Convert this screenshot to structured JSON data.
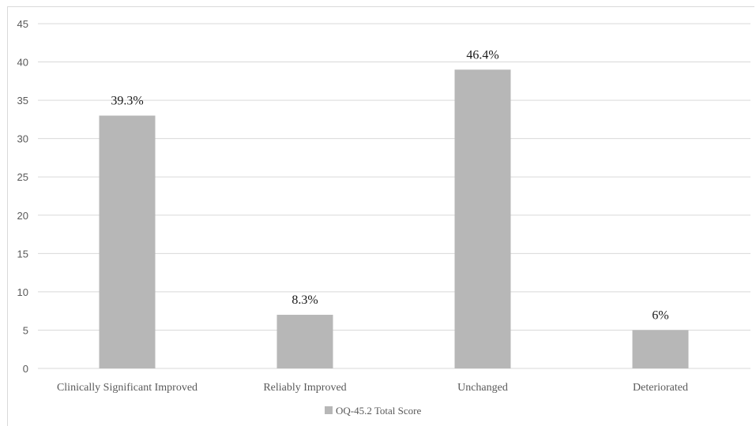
{
  "chart_data": {
    "type": "bar",
    "title": "",
    "xlabel": "",
    "ylabel": "",
    "ylim": [
      0,
      45
    ],
    "y_ticks": [
      0,
      5,
      10,
      15,
      20,
      25,
      30,
      35,
      40,
      45
    ],
    "categories": [
      "Clinically Significant Improved",
      "Reliably Improved",
      "Unchanged",
      "Deteriorated"
    ],
    "series": [
      {
        "name": "OQ-45.2 Total Score",
        "values": [
          33,
          7,
          39,
          5
        ],
        "data_labels": [
          "39.3%",
          "8.3%",
          "46.4%",
          "6%"
        ],
        "color": "#b7b7b7"
      }
    ],
    "grid": true,
    "legend": "bottom",
    "colors": {
      "gridline": "#d9d9d9",
      "axis_text": "#595959",
      "label_text": "#1a1a1a"
    }
  }
}
